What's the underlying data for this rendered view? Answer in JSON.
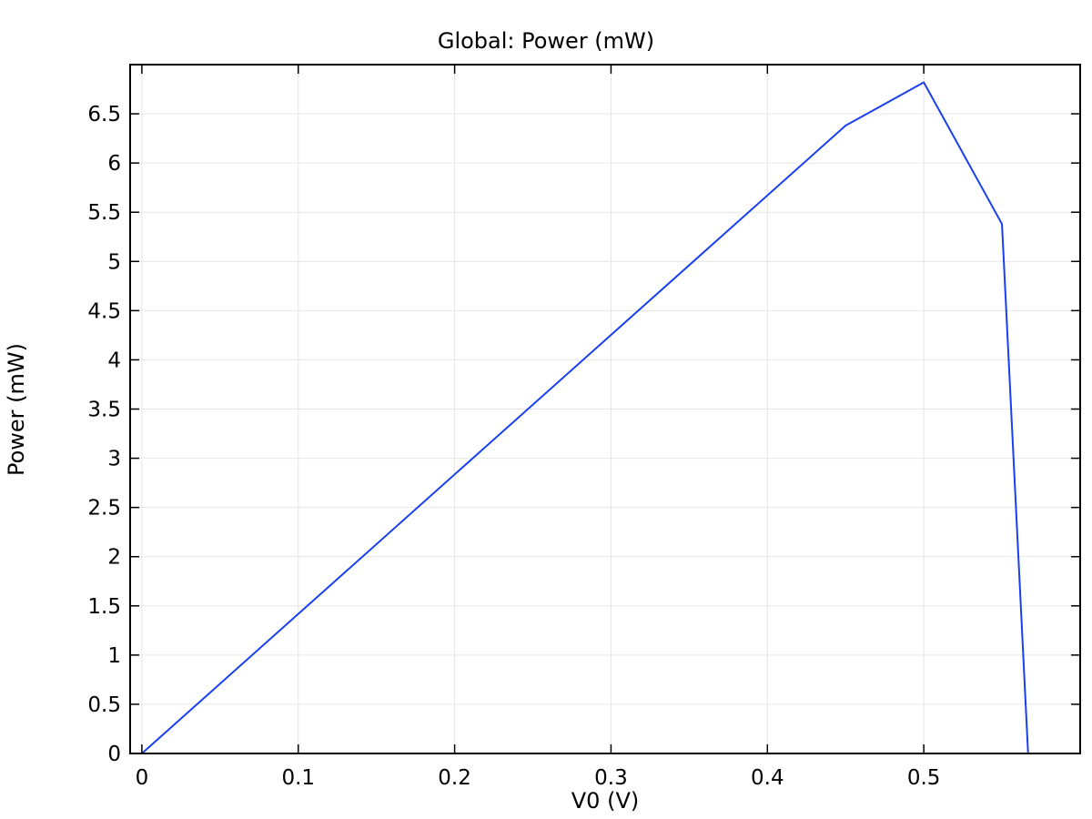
{
  "chart_data": {
    "type": "line",
    "title": "Global: Power (mW)",
    "xlabel": "V0 (V)",
    "ylabel": "Power (mW)",
    "xlim": [
      -0.0075,
      0.6
    ],
    "ylim": [
      0,
      7.0
    ],
    "xticks": [
      0,
      0.1,
      0.2,
      0.3,
      0.4,
      0.5
    ],
    "xtick_labels": [
      "0",
      "0.1",
      "0.2",
      "0.3",
      "0.4",
      "0.5"
    ],
    "yticks": [
      0,
      0.5,
      1,
      1.5,
      2,
      2.5,
      3,
      3.5,
      4,
      4.5,
      5,
      5.5,
      6,
      6.5
    ],
    "ytick_labels": [
      "0",
      "0.5",
      "1",
      "1.5",
      "2",
      "2.5",
      "3",
      "3.5",
      "4",
      "4.5",
      "5",
      "5.5",
      "6",
      "6.5"
    ],
    "grid": true,
    "line_color": "#1a3ff0",
    "series": [
      {
        "x": [
          0,
          0.45,
          0.5,
          0.55,
          0.5667
        ],
        "y": [
          0,
          6.38,
          6.82,
          5.38,
          0
        ]
      }
    ]
  }
}
